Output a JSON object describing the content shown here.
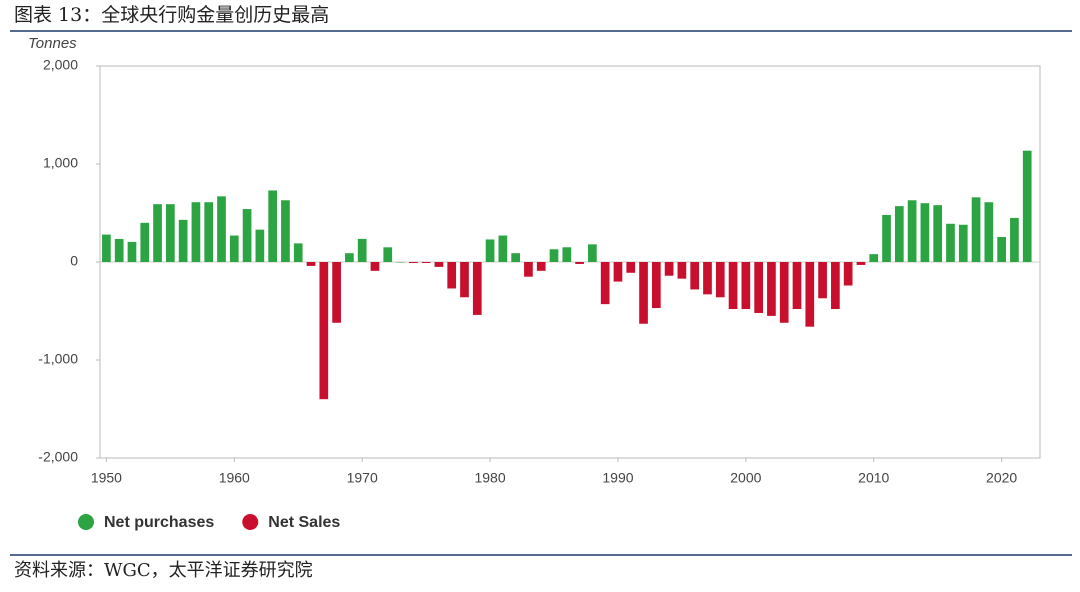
{
  "chart_data": {
    "type": "bar",
    "title": "图表 13：全球央行购金量创历史最高",
    "y_label": "Tonnes",
    "source": "资料来源：WGC，太平洋证券研究院",
    "x": [
      1950,
      1951,
      1952,
      1953,
      1954,
      1955,
      1956,
      1957,
      1958,
      1959,
      1960,
      1961,
      1962,
      1963,
      1964,
      1965,
      1966,
      1967,
      1968,
      1969,
      1970,
      1971,
      1972,
      1973,
      1974,
      1975,
      1976,
      1977,
      1978,
      1979,
      1980,
      1981,
      1982,
      1983,
      1984,
      1985,
      1986,
      1987,
      1988,
      1989,
      1990,
      1991,
      1992,
      1993,
      1994,
      1995,
      1996,
      1997,
      1998,
      1999,
      2000,
      2001,
      2002,
      2003,
      2004,
      2005,
      2006,
      2007,
      2008,
      2009,
      2010,
      2011,
      2012,
      2013,
      2014,
      2015,
      2016,
      2017,
      2018,
      2019,
      2020,
      2021,
      2022
    ],
    "series": [
      {
        "name": "Net purchases",
        "color": "#2ca444",
        "values": [
          280,
          235,
          205,
          400,
          590,
          590,
          430,
          610,
          610,
          670,
          270,
          540,
          330,
          730,
          630,
          190,
          null,
          null,
          null,
          90,
          236,
          null,
          150,
          0,
          null,
          null,
          null,
          null,
          null,
          null,
          230,
          270,
          90,
          null,
          null,
          130,
          150,
          null,
          180,
          null,
          null,
          null,
          null,
          null,
          null,
          null,
          null,
          null,
          null,
          null,
          null,
          null,
          null,
          null,
          null,
          null,
          null,
          null,
          null,
          null,
          80,
          480,
          570,
          630,
          600,
          580,
          390,
          380,
          660,
          610,
          255,
          450,
          1136
        ]
      },
      {
        "name": "Net Sales",
        "color": "#c8102e",
        "values": [
          null,
          null,
          null,
          null,
          null,
          null,
          null,
          null,
          null,
          null,
          null,
          null,
          null,
          null,
          null,
          null,
          -40,
          -1400,
          -620,
          null,
          null,
          -90,
          null,
          null,
          -10,
          -10,
          -50,
          -270,
          -360,
          -540,
          null,
          null,
          null,
          -150,
          -90,
          null,
          null,
          -20,
          null,
          -430,
          -200,
          -110,
          -630,
          -470,
          -140,
          -170,
          -280,
          -330,
          -360,
          -480,
          -480,
          -520,
          -550,
          -620,
          -480,
          -660,
          -370,
          -480,
          -240,
          -30,
          null,
          null,
          null,
          null,
          null,
          null,
          null,
          null,
          null,
          null,
          null,
          null,
          null
        ]
      }
    ],
    "xlim": [
      1949.5,
      2023
    ],
    "xticks": [
      1950,
      1960,
      1970,
      1980,
      1990,
      2000,
      2010,
      2020
    ],
    "ylim": [
      -2000,
      2000
    ],
    "yticks": [
      {
        "value": 2000,
        "label": "2,000"
      },
      {
        "value": 1000,
        "label": "1,000"
      },
      0,
      {
        "value": -1000,
        "label": "-1,000"
      },
      {
        "value": -2000,
        "label": "-2,000"
      }
    ]
  }
}
